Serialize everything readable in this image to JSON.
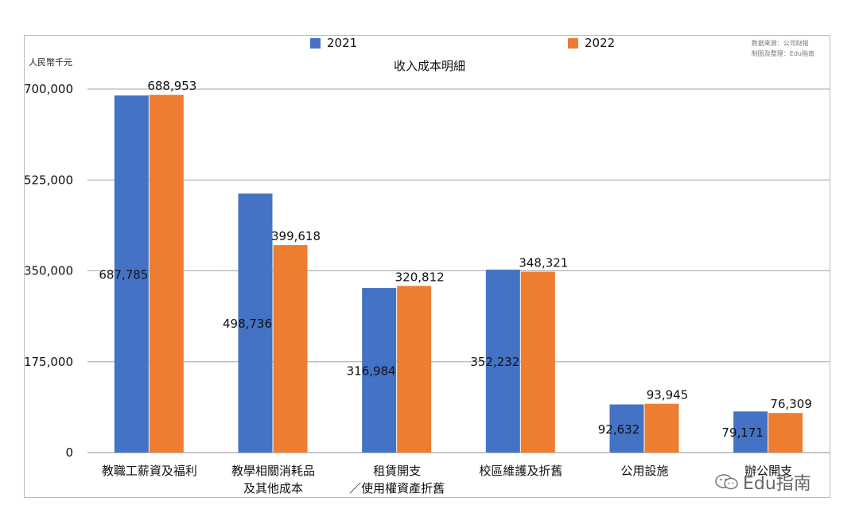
{
  "chart_data": {
    "type": "bar",
    "title": "收入成本明細",
    "ylabel": "人民幣千元",
    "xlabel": "",
    "ylim": [
      0,
      700000
    ],
    "yticks": [
      0,
      175000,
      350000,
      525000,
      700000
    ],
    "ytick_labels": [
      "0",
      "175,000",
      "350,000",
      "525,000",
      "700,000"
    ],
    "grid": true,
    "legend_placement": "top",
    "categories": [
      [
        "教職工薪資及福利"
      ],
      [
        "教學相關消耗品",
        "及其他成本"
      ],
      [
        "租賃開支",
        "／使用權資產折舊"
      ],
      [
        "校區維護及折舊"
      ],
      [
        "公用設施"
      ],
      [
        "辦公開支"
      ]
    ],
    "series": [
      {
        "name": "2021",
        "color": "#4472C4",
        "values": [
          687785,
          498736,
          316984,
          352232,
          92632,
          79171
        ],
        "labels": [
          "687,785",
          "498,736",
          "316,984",
          "352,232",
          "92,632",
          "79,171"
        ]
      },
      {
        "name": "2022",
        "color": "#ED7D31",
        "values": [
          688953,
          399618,
          320812,
          348321,
          93945,
          76309
        ],
        "labels": [
          "688,953",
          "399,618",
          "320,812",
          "348,321",
          "93,945",
          "76,309"
        ]
      }
    ],
    "source_note": [
      "数据来源：公司财报",
      "制图及整理：Edu指南"
    ]
  },
  "watermark": "Edu指南"
}
